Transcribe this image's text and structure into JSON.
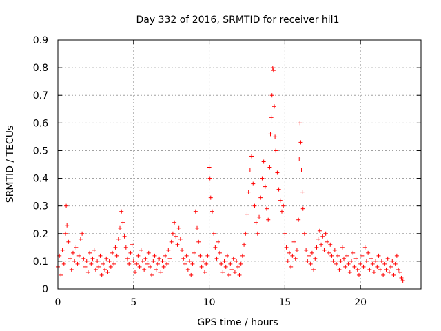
{
  "chart_data": {
    "type": "scatter",
    "title": "Day 332 of 2016, SRMTID for receiver hil1",
    "xlabel": "GPS time / hours",
    "ylabel": "SRMTID / TECUs",
    "xlim": [
      0,
      24
    ],
    "ylim": [
      0,
      0.9
    ],
    "xticks": [
      0,
      5,
      10,
      15,
      20
    ],
    "xtick_labels": [
      "0",
      "5",
      "10",
      "15",
      "20"
    ],
    "yticks": [
      0,
      0.1,
      0.2,
      0.3,
      0.4,
      0.5,
      0.6,
      0.7,
      0.8,
      0.9
    ],
    "ytick_labels": [
      "0",
      "0.1",
      "0.2",
      "0.3",
      "0.4",
      "0.5",
      "0.6",
      "0.7",
      "0.8",
      "0.9"
    ],
    "grid": true,
    "marker": "+",
    "series": [
      {
        "name": "SRMTID hil1",
        "color": "#ff0000",
        "points": [
          [
            0.0,
            0.08
          ],
          [
            0.1,
            0.12
          ],
          [
            0.2,
            0.05
          ],
          [
            0.3,
            0.14
          ],
          [
            0.4,
            0.09
          ],
          [
            0.5,
            0.2
          ],
          [
            0.55,
            0.3
          ],
          [
            0.6,
            0.23
          ],
          [
            0.7,
            0.17
          ],
          [
            0.8,
            0.11
          ],
          [
            0.9,
            0.07
          ],
          [
            1.0,
            0.13
          ],
          [
            1.1,
            0.1
          ],
          [
            1.2,
            0.15
          ],
          [
            1.3,
            0.09
          ],
          [
            1.4,
            0.12
          ],
          [
            1.5,
            0.18
          ],
          [
            1.6,
            0.2
          ],
          [
            1.7,
            0.11
          ],
          [
            1.8,
            0.08
          ],
          [
            1.9,
            0.1
          ],
          [
            2.0,
            0.06
          ],
          [
            2.1,
            0.13
          ],
          [
            2.2,
            0.09
          ],
          [
            2.3,
            0.11
          ],
          [
            2.4,
            0.14
          ],
          [
            2.5,
            0.07
          ],
          [
            2.6,
            0.1
          ],
          [
            2.7,
            0.08
          ],
          [
            2.8,
            0.12
          ],
          [
            2.9,
            0.05
          ],
          [
            3.0,
            0.09
          ],
          [
            3.1,
            0.07
          ],
          [
            3.2,
            0.11
          ],
          [
            3.3,
            0.06
          ],
          [
            3.4,
            0.1
          ],
          [
            3.5,
            0.08
          ],
          [
            3.6,
            0.13
          ],
          [
            3.7,
            0.09
          ],
          [
            3.8,
            0.15
          ],
          [
            3.9,
            0.12
          ],
          [
            4.0,
            0.18
          ],
          [
            4.1,
            0.22
          ],
          [
            4.2,
            0.28
          ],
          [
            4.3,
            0.24
          ],
          [
            4.4,
            0.19
          ],
          [
            4.5,
            0.15
          ],
          [
            4.6,
            0.11
          ],
          [
            4.7,
            0.09
          ],
          [
            4.8,
            0.13
          ],
          [
            4.9,
            0.16
          ],
          [
            5.0,
            0.1
          ],
          [
            5.1,
            0.06
          ],
          [
            5.2,
            0.09
          ],
          [
            5.3,
            0.12
          ],
          [
            5.4,
            0.08
          ],
          [
            5.5,
            0.14
          ],
          [
            5.6,
            0.1
          ],
          [
            5.7,
            0.07
          ],
          [
            5.8,
            0.11
          ],
          [
            5.9,
            0.09
          ],
          [
            6.0,
            0.13
          ],
          [
            6.1,
            0.08
          ],
          [
            6.2,
            0.05
          ],
          [
            6.3,
            0.1
          ],
          [
            6.4,
            0.12
          ],
          [
            6.5,
            0.07
          ],
          [
            6.6,
            0.09
          ],
          [
            6.7,
            0.11
          ],
          [
            6.8,
            0.06
          ],
          [
            6.9,
            0.1
          ],
          [
            7.0,
            0.08
          ],
          [
            7.1,
            0.12
          ],
          [
            7.2,
            0.09
          ],
          [
            7.3,
            0.14
          ],
          [
            7.4,
            0.11
          ],
          [
            7.5,
            0.17
          ],
          [
            7.6,
            0.2
          ],
          [
            7.7,
            0.24
          ],
          [
            7.8,
            0.19
          ],
          [
            7.9,
            0.16
          ],
          [
            8.0,
            0.22
          ],
          [
            8.1,
            0.18
          ],
          [
            8.2,
            0.14
          ],
          [
            8.3,
            0.11
          ],
          [
            8.4,
            0.09
          ],
          [
            8.5,
            0.12
          ],
          [
            8.6,
            0.07
          ],
          [
            8.7,
            0.1
          ],
          [
            8.8,
            0.05
          ],
          [
            8.9,
            0.09
          ],
          [
            9.0,
            0.13
          ],
          [
            9.1,
            0.28
          ],
          [
            9.2,
            0.22
          ],
          [
            9.3,
            0.17
          ],
          [
            9.4,
            0.12
          ],
          [
            9.5,
            0.08
          ],
          [
            9.6,
            0.1
          ],
          [
            9.7,
            0.06
          ],
          [
            9.8,
            0.09
          ],
          [
            9.9,
            0.12
          ],
          [
            10.0,
            0.44
          ],
          [
            10.05,
            0.4
          ],
          [
            10.1,
            0.33
          ],
          [
            10.2,
            0.28
          ],
          [
            10.3,
            0.2
          ],
          [
            10.4,
            0.15
          ],
          [
            10.5,
            0.11
          ],
          [
            10.6,
            0.17
          ],
          [
            10.7,
            0.13
          ],
          [
            10.8,
            0.09
          ],
          [
            10.9,
            0.06
          ],
          [
            11.0,
            0.1
          ],
          [
            11.1,
            0.08
          ],
          [
            11.2,
            0.12
          ],
          [
            11.3,
            0.05
          ],
          [
            11.4,
            0.09
          ],
          [
            11.5,
            0.07
          ],
          [
            11.6,
            0.11
          ],
          [
            11.7,
            0.06
          ],
          [
            11.8,
            0.1
          ],
          [
            11.9,
            0.08
          ],
          [
            12.0,
            0.05
          ],
          [
            12.1,
            0.09
          ],
          [
            12.2,
            0.12
          ],
          [
            12.3,
            0.16
          ],
          [
            12.4,
            0.2
          ],
          [
            12.5,
            0.27
          ],
          [
            12.6,
            0.35
          ],
          [
            12.7,
            0.43
          ],
          [
            12.8,
            0.48
          ],
          [
            12.9,
            0.38
          ],
          [
            13.0,
            0.3
          ],
          [
            13.1,
            0.24
          ],
          [
            13.2,
            0.2
          ],
          [
            13.3,
            0.26
          ],
          [
            13.4,
            0.33
          ],
          [
            13.5,
            0.4
          ],
          [
            13.6,
            0.46
          ],
          [
            13.7,
            0.37
          ],
          [
            13.8,
            0.29
          ],
          [
            13.9,
            0.25
          ],
          [
            14.0,
            0.44
          ],
          [
            14.05,
            0.56
          ],
          [
            14.1,
            0.62
          ],
          [
            14.15,
            0.7
          ],
          [
            14.2,
            0.8
          ],
          [
            14.25,
            0.79
          ],
          [
            14.3,
            0.66
          ],
          [
            14.35,
            0.55
          ],
          [
            14.4,
            0.5
          ],
          [
            14.5,
            0.42
          ],
          [
            14.6,
            0.36
          ],
          [
            14.7,
            0.32
          ],
          [
            14.8,
            0.28
          ],
          [
            14.9,
            0.3
          ],
          [
            15.0,
            0.2
          ],
          [
            15.1,
            0.15
          ],
          [
            15.2,
            0.1
          ],
          [
            15.3,
            0.13
          ],
          [
            15.4,
            0.08
          ],
          [
            15.5,
            0.12
          ],
          [
            15.6,
            0.17
          ],
          [
            15.7,
            0.11
          ],
          [
            15.8,
            0.14
          ],
          [
            15.9,
            0.25
          ],
          [
            15.95,
            0.47
          ],
          [
            16.0,
            0.6
          ],
          [
            16.05,
            0.53
          ],
          [
            16.1,
            0.43
          ],
          [
            16.15,
            0.35
          ],
          [
            16.2,
            0.29
          ],
          [
            16.3,
            0.2
          ],
          [
            16.4,
            0.14
          ],
          [
            16.5,
            0.1
          ],
          [
            16.6,
            0.12
          ],
          [
            16.7,
            0.09
          ],
          [
            16.8,
            0.13
          ],
          [
            16.9,
            0.07
          ],
          [
            17.0,
            0.11
          ],
          [
            17.1,
            0.15
          ],
          [
            17.2,
            0.18
          ],
          [
            17.3,
            0.21
          ],
          [
            17.4,
            0.16
          ],
          [
            17.5,
            0.19
          ],
          [
            17.6,
            0.14
          ],
          [
            17.7,
            0.2
          ],
          [
            17.8,
            0.17
          ],
          [
            17.9,
            0.13
          ],
          [
            18.0,
            0.16
          ],
          [
            18.1,
            0.12
          ],
          [
            18.2,
            0.1
          ],
          [
            18.3,
            0.14
          ],
          [
            18.4,
            0.09
          ],
          [
            18.5,
            0.12
          ],
          [
            18.6,
            0.07
          ],
          [
            18.7,
            0.1
          ],
          [
            18.8,
            0.15
          ],
          [
            18.9,
            0.11
          ],
          [
            19.0,
            0.08
          ],
          [
            19.1,
            0.12
          ],
          [
            19.2,
            0.09
          ],
          [
            19.3,
            0.06
          ],
          [
            19.4,
            0.1
          ],
          [
            19.5,
            0.13
          ],
          [
            19.6,
            0.08
          ],
          [
            19.7,
            0.11
          ],
          [
            19.8,
            0.07
          ],
          [
            19.9,
            0.05
          ],
          [
            20.0,
            0.09
          ],
          [
            20.1,
            0.12
          ],
          [
            20.2,
            0.08
          ],
          [
            20.3,
            0.15
          ],
          [
            20.4,
            0.1
          ],
          [
            20.5,
            0.13
          ],
          [
            20.6,
            0.07
          ],
          [
            20.7,
            0.11
          ],
          [
            20.8,
            0.09
          ],
          [
            20.9,
            0.06
          ],
          [
            21.0,
            0.1
          ],
          [
            21.1,
            0.08
          ],
          [
            21.2,
            0.12
          ],
          [
            21.3,
            0.07
          ],
          [
            21.4,
            0.1
          ],
          [
            21.5,
            0.05
          ],
          [
            21.6,
            0.09
          ],
          [
            21.7,
            0.07
          ],
          [
            21.8,
            0.11
          ],
          [
            21.9,
            0.06
          ],
          [
            22.0,
            0.08
          ],
          [
            22.1,
            0.1
          ],
          [
            22.2,
            0.05
          ],
          [
            22.3,
            0.09
          ],
          [
            22.4,
            0.12
          ],
          [
            22.5,
            0.07
          ],
          [
            22.6,
            0.06
          ],
          [
            22.7,
            0.04
          ],
          [
            22.8,
            0.03
          ]
        ]
      }
    ]
  }
}
